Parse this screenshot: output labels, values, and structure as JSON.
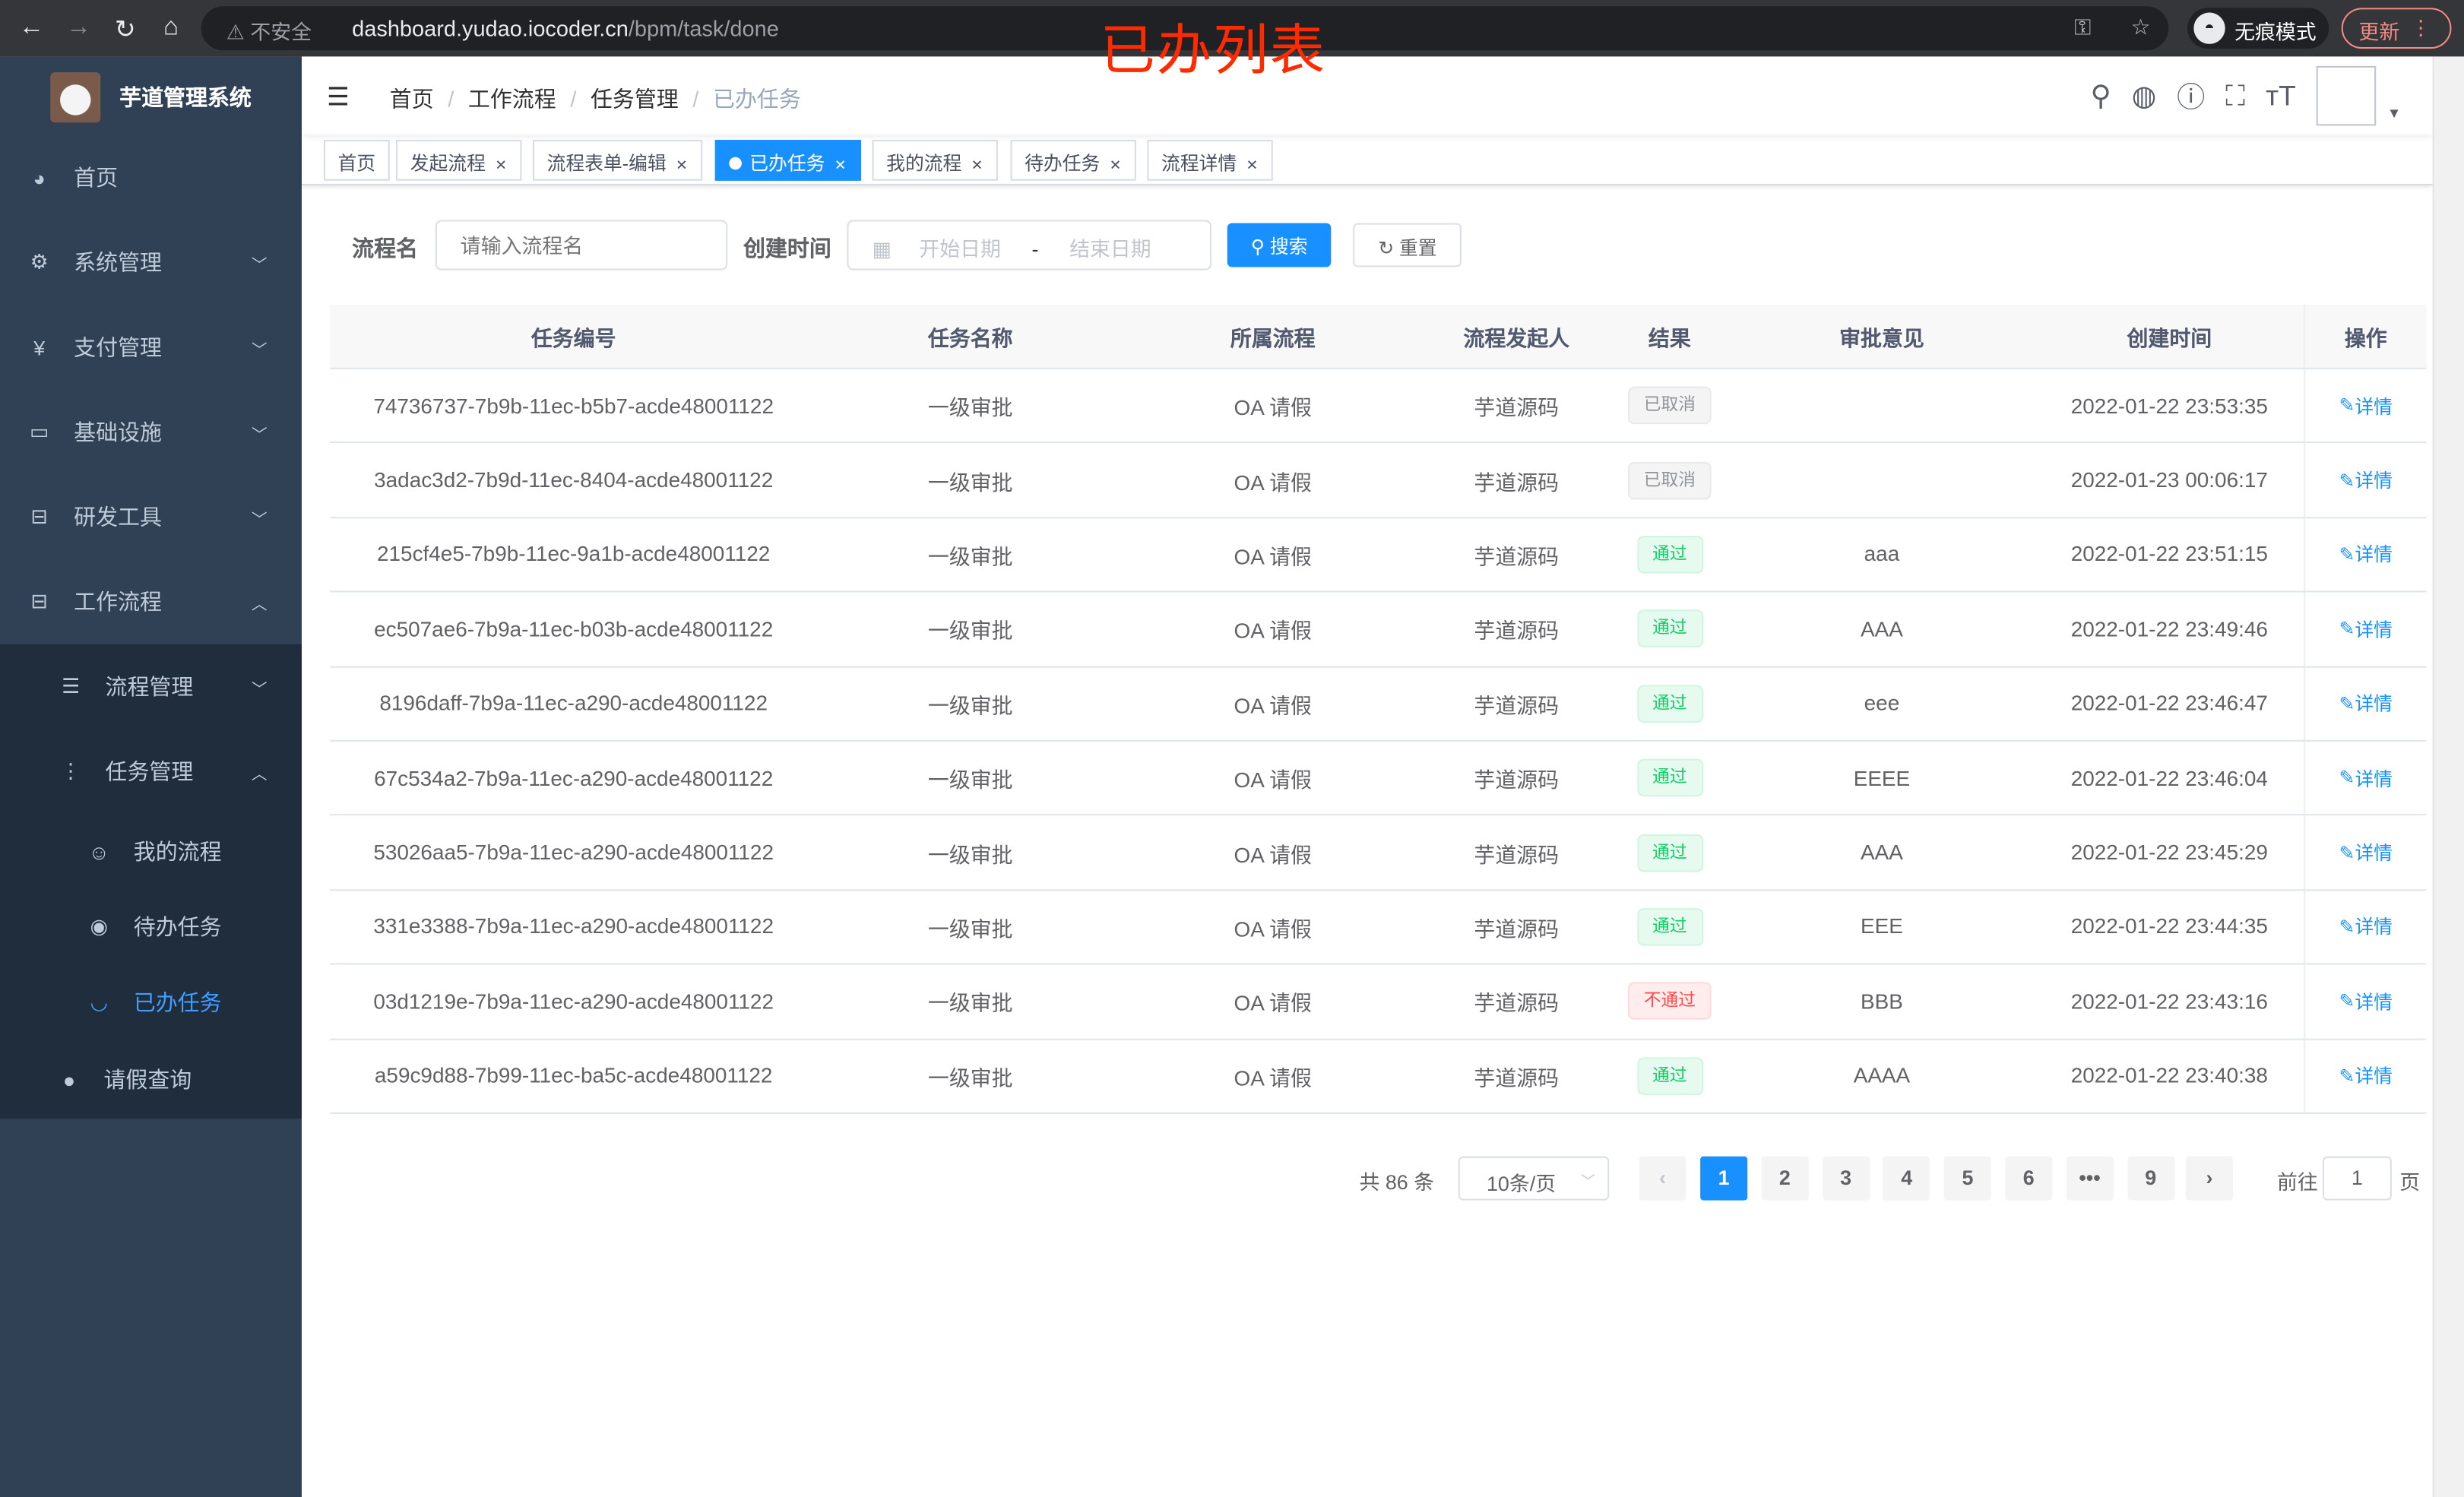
{
  "browser": {
    "security": "不安全",
    "url_host": "dashboard.yudao.iocoder.cn",
    "url_path": "/bpm/task/done",
    "incognito": "无痕模式",
    "update": "更新"
  },
  "overlay_title": "已办列表",
  "sidebar": {
    "title": "芋道管理系统",
    "items": [
      {
        "label": "首页",
        "icon": "dashboard-icon"
      },
      {
        "label": "系统管理",
        "icon": "gear-icon"
      },
      {
        "label": "支付管理",
        "icon": "yen-icon"
      },
      {
        "label": "基础设施",
        "icon": "monitor-icon"
      },
      {
        "label": "研发工具",
        "icon": "toolbox-icon"
      },
      {
        "label": "工作流程",
        "icon": "toolbox-icon"
      }
    ],
    "sub": [
      {
        "label": "流程管理"
      },
      {
        "label": "任务管理"
      }
    ],
    "subsub": [
      {
        "label": "我的流程"
      },
      {
        "label": "待办任务"
      },
      {
        "label": "已办任务"
      }
    ],
    "leave": "请假查询"
  },
  "breadcrumb": [
    "首页",
    "工作流程",
    "任务管理",
    "已办任务"
  ],
  "tags": [
    "首页",
    "发起流程",
    "流程表单-编辑",
    "已办任务",
    "我的流程",
    "待办任务",
    "流程详情"
  ],
  "form": {
    "name_label": "流程名",
    "name_placeholder": "请输入流程名",
    "time_label": "创建时间",
    "start_placeholder": "开始日期",
    "range_sep": "-",
    "end_placeholder": "结束日期",
    "search": "搜索",
    "reset": "重置"
  },
  "table": {
    "headers": [
      "任务编号",
      "任务名称",
      "所属流程",
      "流程发起人",
      "结果",
      "审批意见",
      "创建时间",
      "操作"
    ],
    "action": "详情",
    "rows": [
      {
        "id": "74736737-7b9b-11ec-b5b7-acde48001122",
        "name": "一级审批",
        "process": "OA 请假",
        "initiator": "芋道源码",
        "result": "已取消",
        "status": "info",
        "opinion": "",
        "time": "2022-01-22 23:53:35"
      },
      {
        "id": "3adac3d2-7b9d-11ec-8404-acde48001122",
        "name": "一级审批",
        "process": "OA 请假",
        "initiator": "芋道源码",
        "result": "已取消",
        "status": "info",
        "opinion": "",
        "time": "2022-01-23 00:06:17"
      },
      {
        "id": "215cf4e5-7b9b-11ec-9a1b-acde48001122",
        "name": "一级审批",
        "process": "OA 请假",
        "initiator": "芋道源码",
        "result": "通过",
        "status": "success",
        "opinion": "aaa",
        "time": "2022-01-22 23:51:15"
      },
      {
        "id": "ec507ae6-7b9a-11ec-b03b-acde48001122",
        "name": "一级审批",
        "process": "OA 请假",
        "initiator": "芋道源码",
        "result": "通过",
        "status": "success",
        "opinion": "AAA",
        "time": "2022-01-22 23:49:46"
      },
      {
        "id": "8196daff-7b9a-11ec-a290-acde48001122",
        "name": "一级审批",
        "process": "OA 请假",
        "initiator": "芋道源码",
        "result": "通过",
        "status": "success",
        "opinion": "eee",
        "time": "2022-01-22 23:46:47"
      },
      {
        "id": "67c534a2-7b9a-11ec-a290-acde48001122",
        "name": "一级审批",
        "process": "OA 请假",
        "initiator": "芋道源码",
        "result": "通过",
        "status": "success",
        "opinion": "EEEE",
        "time": "2022-01-22 23:46:04"
      },
      {
        "id": "53026aa5-7b9a-11ec-a290-acde48001122",
        "name": "一级审批",
        "process": "OA 请假",
        "initiator": "芋道源码",
        "result": "通过",
        "status": "success",
        "opinion": "AAA",
        "time": "2022-01-22 23:45:29"
      },
      {
        "id": "331e3388-7b9a-11ec-a290-acde48001122",
        "name": "一级审批",
        "process": "OA 请假",
        "initiator": "芋道源码",
        "result": "通过",
        "status": "success",
        "opinion": "EEE",
        "time": "2022-01-22 23:44:35"
      },
      {
        "id": "03d1219e-7b9a-11ec-a290-acde48001122",
        "name": "一级审批",
        "process": "OA 请假",
        "initiator": "芋道源码",
        "result": "不通过",
        "status": "danger",
        "opinion": "BBB",
        "time": "2022-01-22 23:43:16"
      },
      {
        "id": "a59c9d88-7b99-11ec-ba5c-acde48001122",
        "name": "一级审批",
        "process": "OA 请假",
        "initiator": "芋道源码",
        "result": "通过",
        "status": "success",
        "opinion": "AAAA",
        "time": "2022-01-22 23:40:38"
      }
    ]
  },
  "pagination": {
    "total": "共 86 条",
    "page_size": "10条/页",
    "pages": [
      "1",
      "2",
      "3",
      "4",
      "5",
      "6",
      "•••",
      "9"
    ],
    "current": "1",
    "goto_label": "前往",
    "goto_value": "1",
    "goto_suffix": "页"
  },
  "colors": {
    "primary": "#1890ff",
    "sidebar": "#304156",
    "submenu": "#1f2d3d",
    "overlay": "#ff2a00"
  }
}
